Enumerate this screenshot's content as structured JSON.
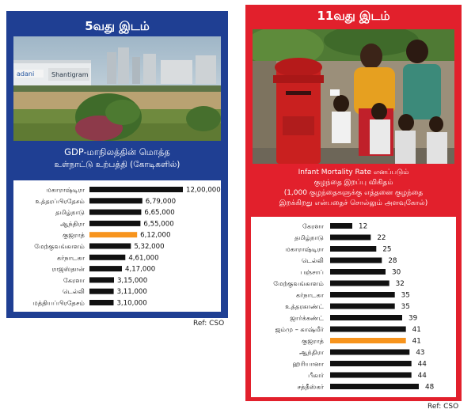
{
  "left_panel": {
    "rank_title": "5வது இடம்",
    "photo_sign_1": "adani",
    "photo_sign_2": "Shantigram",
    "subtitle_line1": "GDP-மாநிலத்தின் மொத்த",
    "subtitle_line2": "உள்நாட்டு உற்பத்தி (கோடிகளில்)",
    "ref": "Ref: CSO",
    "bar_color": "#111111",
    "highlight_color": "#f7941d",
    "panel_color": "#1f3f93"
  },
  "right_panel": {
    "rank_title": "11வது இடம்",
    "subtitle_line1": "Infant Mortality Rate எனப்படும்",
    "subtitle_line2": "குழந்தை இறப்பு விகிதம்",
    "subtitle_line3": "(1,000 குழந்தைகளுக்கு எத்தனை குழந்தை",
    "subtitle_line4": "இறக்கிறது என்பதைச் சொல்லும் அளவுகோல்)",
    "ref": "Ref: CSO",
    "bar_color": "#111111",
    "highlight_color": "#f7941d",
    "panel_color": "#e2202c"
  },
  "chart_data": [
    {
      "type": "bar",
      "orientation": "horizontal",
      "title": "GDP-மாநிலத்தின் மொத்த உள்நாட்டு உற்பத்தி (கோடிகளில்)",
      "categories": [
        "மகாராஷ்டிரா",
        "உத்தரப்பிரதேசம்",
        "தமிழ்நாடு",
        "ஆந்திரா",
        "குஜராத்",
        "மேற்குவங்காளம்",
        "கர்நாடகா",
        "ராஜஸ்தான்",
        "கேரளா",
        "டெல்லி",
        "மத்தியப்பிரதேசம்"
      ],
      "values": [
        1200000,
        679000,
        665000,
        655000,
        612000,
        532000,
        461000,
        417000,
        315000,
        311000,
        310000
      ],
      "value_labels": [
        "12,00,000",
        "6,79,000",
        "6,65,000",
        "6,55,000",
        "6,12,000",
        "5,32,000",
        "4,61,000",
        "4,17,000",
        "3,15,000",
        "3,11,000",
        "3,10,000"
      ],
      "highlight": "குஜராத்",
      "xlim": [
        0,
        1200000
      ]
    },
    {
      "type": "bar",
      "orientation": "horizontal",
      "title": "Infant Mortality Rate எனப்படும் குழந்தை இறப்பு விகிதம்",
      "categories": [
        "கேரளா",
        "தமிழ்நாடு",
        "மகாராஷ்டிரா",
        "டெல்லி",
        "பஞ்சாப்",
        "மேற்குவங்காளம்",
        "கர்நாடகா",
        "உத்தரகாண்ட்",
        "ஜார்க்கண்ட்",
        "ஜம்மு – காஷ்மீர்",
        "குஜராத்",
        "ஆந்திரா",
        "ஹரியானா",
        "பீகார்",
        "சத்தீஸ்கர்"
      ],
      "values": [
        12,
        22,
        25,
        28,
        30,
        32,
        35,
        35,
        39,
        41,
        41,
        43,
        44,
        44,
        48
      ],
      "value_labels": [
        "12",
        "22",
        "25",
        "28",
        "30",
        "32",
        "35",
        "35",
        "39",
        "41",
        "41",
        "43",
        "44",
        "44",
        "48"
      ],
      "highlight": "குஜராத்",
      "xlim": [
        0,
        48
      ]
    }
  ]
}
